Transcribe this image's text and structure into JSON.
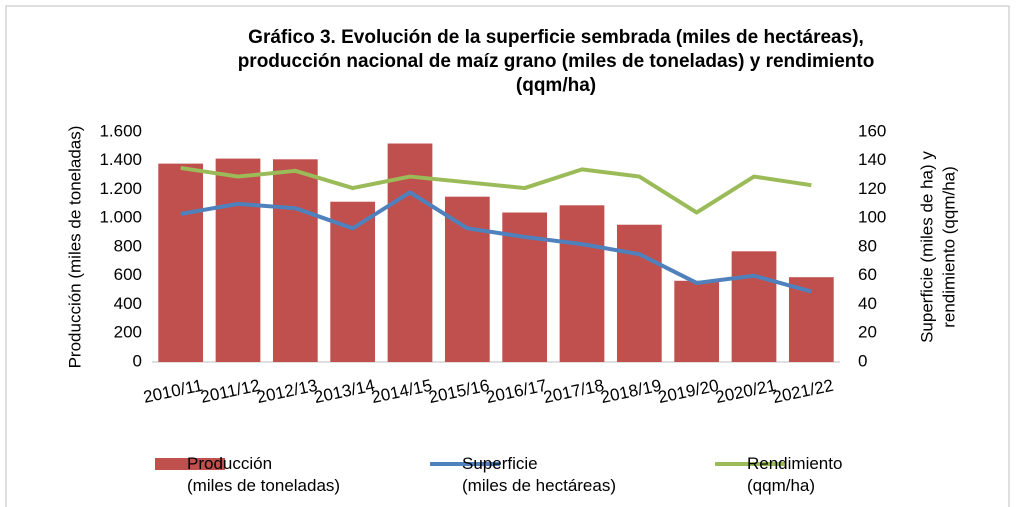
{
  "chart_data": {
    "type": "bar-line",
    "title": [
      "Gráfico 3. Evolución de la superficie sembrada (miles de hectáreas),",
      "producción nacional de maíz grano (miles de toneladas) y rendimiento",
      "(qqm/ha)"
    ],
    "ylabel": "Producción (miles de toneladas)",
    "y2label": [
      "Superficie (miles de ha) y",
      "rendimiento (qqm/ha)"
    ],
    "categories": [
      "2010/11",
      "2011/12",
      "2012/13",
      "2013/14",
      "2014/15",
      "2015/16",
      "2016/17",
      "2017/18",
      "2018/19",
      "2019/20",
      "2020/21",
      "2021/22"
    ],
    "series": [
      {
        "name": "Producción\n(miles de toneladas)",
        "color": "#c0504d",
        "kind": "bar",
        "axis": "y",
        "values": [
          1380,
          1415,
          1410,
          1115,
          1520,
          1150,
          1040,
          1090,
          955,
          565,
          770,
          590
        ]
      },
      {
        "name": "Superficie\n(miles de hectáreas)",
        "color": "#4f81bd",
        "kind": "line",
        "axis": "y2",
        "values": [
          103,
          110,
          107,
          93,
          118,
          93,
          87,
          82,
          75,
          55,
          60,
          49
        ]
      },
      {
        "name": "Rendimiento\n(qqm/ha)",
        "color": "#9bbb59",
        "kind": "line",
        "axis": "y2",
        "values": [
          135,
          129,
          133,
          121,
          129,
          125,
          121,
          134,
          129,
          104,
          129,
          123
        ]
      }
    ],
    "ylim": [
      0,
      1600
    ],
    "yticks": [
      0,
      200,
      400,
      600,
      800,
      {
        "value": 1000,
        "label": "1.000"
      },
      {
        "value": 1200,
        "label": "1.200"
      },
      {
        "value": 1400,
        "label": "1.400"
      },
      {
        "value": 1600,
        "label": "1.600"
      }
    ],
    "y2lim": [
      0,
      160
    ],
    "y2ticks": [
      0,
      20,
      40,
      60,
      80,
      100,
      120,
      140,
      160
    ]
  }
}
